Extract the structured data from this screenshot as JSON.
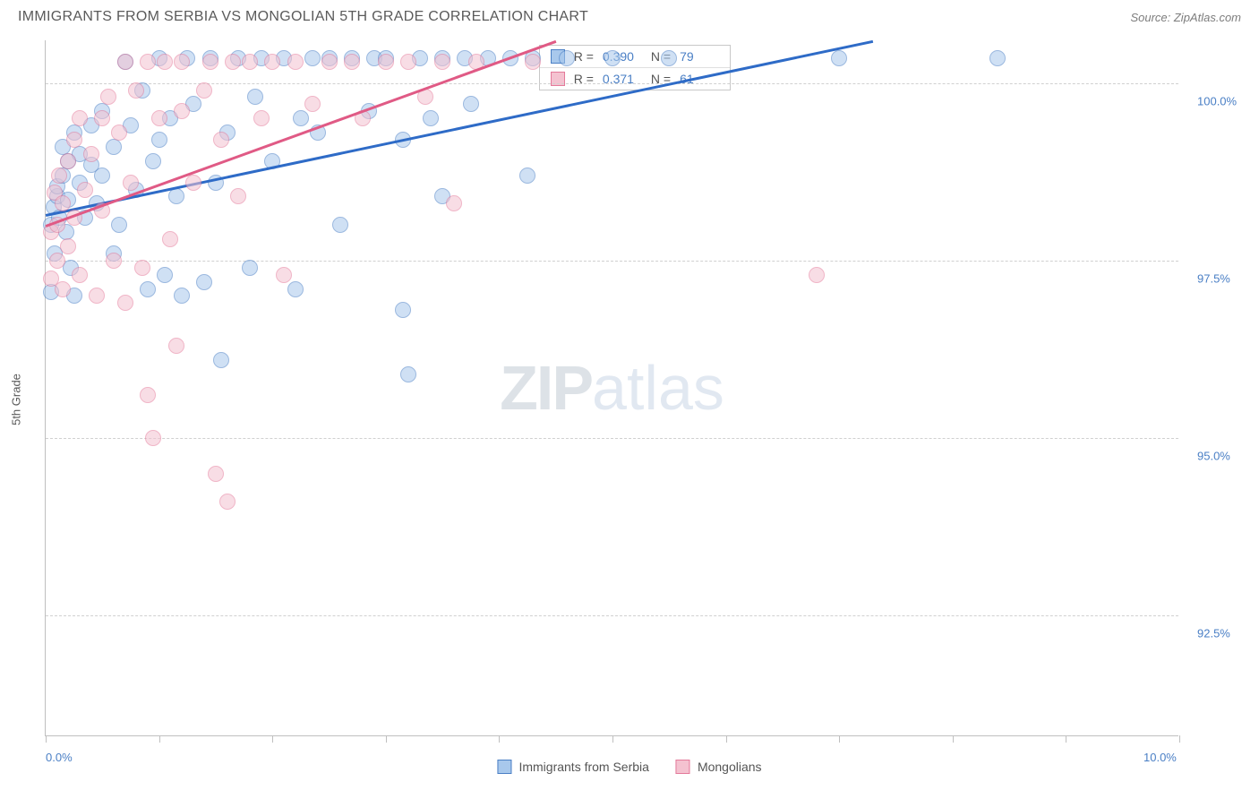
{
  "header": {
    "title": "IMMIGRANTS FROM SERBIA VS MONGOLIAN 5TH GRADE CORRELATION CHART",
    "source": "Source: ZipAtlas.com"
  },
  "chart": {
    "type": "scatter",
    "ylabel": "5th Grade",
    "xlim": [
      0,
      10
    ],
    "ylim": [
      90.8,
      100.6
    ],
    "xtick_positions": [
      0,
      1,
      2,
      3,
      4,
      5,
      6,
      7,
      8,
      9,
      10
    ],
    "xtick_labels_shown": {
      "0": "0.0%",
      "10": "10.0%"
    },
    "ytick_positions": [
      92.5,
      95.0,
      97.5,
      100.0
    ],
    "ytick_labels": [
      "92.5%",
      "95.0%",
      "97.5%",
      "100.0%"
    ],
    "background_color": "#ffffff",
    "grid_color": "#d0d0d0",
    "axis_color": "#bfbfbf",
    "point_radius": 9,
    "point_opacity": 0.55,
    "series": [
      {
        "name": "Immigrants from Serbia",
        "color_fill": "#a8c8ec",
        "color_stroke": "#4a7fc5",
        "trend_color": "#2e6bc7",
        "R": "0.390",
        "N": "79",
        "trend": {
          "x1": 0.0,
          "y1": 98.15,
          "x2": 7.3,
          "y2": 100.6
        },
        "points": [
          [
            0.05,
            97.05
          ],
          [
            0.05,
            98.0
          ],
          [
            0.07,
            98.25
          ],
          [
            0.08,
            97.6
          ],
          [
            0.1,
            98.4
          ],
          [
            0.1,
            98.55
          ],
          [
            0.12,
            98.1
          ],
          [
            0.15,
            99.1
          ],
          [
            0.15,
            98.7
          ],
          [
            0.18,
            97.9
          ],
          [
            0.2,
            98.35
          ],
          [
            0.2,
            98.9
          ],
          [
            0.22,
            97.4
          ],
          [
            0.25,
            97.0
          ],
          [
            0.25,
            99.3
          ],
          [
            0.3,
            98.6
          ],
          [
            0.3,
            99.0
          ],
          [
            0.35,
            98.1
          ],
          [
            0.4,
            98.85
          ],
          [
            0.4,
            99.4
          ],
          [
            0.45,
            98.3
          ],
          [
            0.5,
            99.6
          ],
          [
            0.5,
            98.7
          ],
          [
            0.6,
            99.1
          ],
          [
            0.6,
            97.6
          ],
          [
            0.65,
            98.0
          ],
          [
            0.7,
            100.3
          ],
          [
            0.75,
            99.4
          ],
          [
            0.8,
            98.5
          ],
          [
            0.85,
            99.9
          ],
          [
            0.9,
            97.1
          ],
          [
            0.95,
            98.9
          ],
          [
            1.0,
            100.35
          ],
          [
            1.0,
            99.2
          ],
          [
            1.05,
            97.3
          ],
          [
            1.1,
            99.5
          ],
          [
            1.15,
            98.4
          ],
          [
            1.2,
            97.0
          ],
          [
            1.25,
            100.35
          ],
          [
            1.3,
            99.7
          ],
          [
            1.4,
            97.2
          ],
          [
            1.45,
            100.35
          ],
          [
            1.5,
            98.6
          ],
          [
            1.55,
            96.1
          ],
          [
            1.6,
            99.3
          ],
          [
            1.7,
            100.35
          ],
          [
            1.8,
            97.4
          ],
          [
            1.85,
            99.8
          ],
          [
            1.9,
            100.35
          ],
          [
            2.0,
            98.9
          ],
          [
            2.1,
            100.35
          ],
          [
            2.2,
            97.1
          ],
          [
            2.25,
            99.5
          ],
          [
            2.35,
            100.35
          ],
          [
            2.4,
            99.3
          ],
          [
            2.5,
            100.35
          ],
          [
            2.6,
            98.0
          ],
          [
            2.7,
            100.35
          ],
          [
            2.85,
            99.6
          ],
          [
            2.9,
            100.35
          ],
          [
            3.0,
            100.35
          ],
          [
            3.15,
            99.2
          ],
          [
            3.15,
            96.8
          ],
          [
            3.2,
            95.9
          ],
          [
            3.3,
            100.35
          ],
          [
            3.4,
            99.5
          ],
          [
            3.5,
            100.35
          ],
          [
            3.5,
            98.4
          ],
          [
            3.7,
            100.35
          ],
          [
            3.75,
            99.7
          ],
          [
            3.9,
            100.35
          ],
          [
            4.1,
            100.35
          ],
          [
            4.25,
            98.7
          ],
          [
            4.3,
            100.35
          ],
          [
            4.6,
            100.35
          ],
          [
            5.0,
            100.35
          ],
          [
            5.5,
            100.35
          ],
          [
            7.0,
            100.35
          ],
          [
            8.4,
            100.35
          ]
        ]
      },
      {
        "name": "Mongolians",
        "color_fill": "#f4c2d0",
        "color_stroke": "#e47a9a",
        "trend_color": "#e05a85",
        "R": "0.371",
        "N": "61",
        "trend": {
          "x1": 0.0,
          "y1": 98.0,
          "x2": 4.5,
          "y2": 100.6
        },
        "points": [
          [
            0.05,
            97.25
          ],
          [
            0.05,
            97.9
          ],
          [
            0.08,
            98.45
          ],
          [
            0.1,
            98.0
          ],
          [
            0.1,
            97.5
          ],
          [
            0.12,
            98.7
          ],
          [
            0.15,
            97.1
          ],
          [
            0.15,
            98.3
          ],
          [
            0.2,
            98.9
          ],
          [
            0.2,
            97.7
          ],
          [
            0.25,
            99.2
          ],
          [
            0.25,
            98.1
          ],
          [
            0.3,
            97.3
          ],
          [
            0.3,
            99.5
          ],
          [
            0.35,
            98.5
          ],
          [
            0.4,
            99.0
          ],
          [
            0.45,
            97.0
          ],
          [
            0.5,
            99.5
          ],
          [
            0.5,
            98.2
          ],
          [
            0.55,
            99.8
          ],
          [
            0.6,
            97.5
          ],
          [
            0.65,
            99.3
          ],
          [
            0.7,
            100.3
          ],
          [
            0.7,
            96.9
          ],
          [
            0.75,
            98.6
          ],
          [
            0.8,
            99.9
          ],
          [
            0.85,
            97.4
          ],
          [
            0.9,
            100.3
          ],
          [
            0.9,
            95.6
          ],
          [
            0.95,
            95.0
          ],
          [
            1.0,
            99.5
          ],
          [
            1.05,
            100.3
          ],
          [
            1.1,
            97.8
          ],
          [
            1.15,
            96.3
          ],
          [
            1.2,
            99.6
          ],
          [
            1.2,
            100.3
          ],
          [
            1.3,
            98.6
          ],
          [
            1.4,
            99.9
          ],
          [
            1.45,
            100.3
          ],
          [
            1.5,
            94.5
          ],
          [
            1.55,
            99.2
          ],
          [
            1.6,
            94.1
          ],
          [
            1.65,
            100.3
          ],
          [
            1.7,
            98.4
          ],
          [
            1.8,
            100.3
          ],
          [
            1.9,
            99.5
          ],
          [
            2.0,
            100.3
          ],
          [
            2.1,
            97.3
          ],
          [
            2.2,
            100.3
          ],
          [
            2.35,
            99.7
          ],
          [
            2.5,
            100.3
          ],
          [
            2.7,
            100.3
          ],
          [
            2.8,
            99.5
          ],
          [
            3.0,
            100.3
          ],
          [
            3.2,
            100.3
          ],
          [
            3.35,
            99.8
          ],
          [
            3.5,
            100.3
          ],
          [
            3.6,
            98.3
          ],
          [
            3.8,
            100.3
          ],
          [
            4.3,
            100.3
          ],
          [
            6.8,
            97.3
          ]
        ]
      }
    ],
    "legend": {
      "items": [
        "Immigrants from Serbia",
        "Mongolians"
      ]
    },
    "watermark": {
      "zip": "ZIP",
      "atlas": "atlas"
    }
  }
}
